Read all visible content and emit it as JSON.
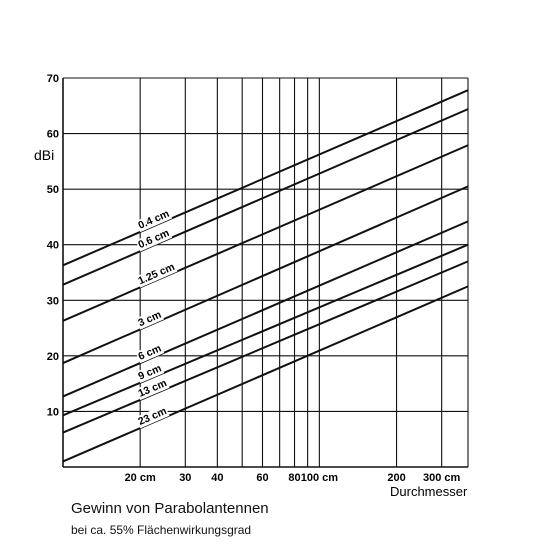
{
  "chart_data": {
    "type": "line",
    "title": "Gewinn von Parabolantennen",
    "subtitle": "bei ca. 55% Flächenwirkungsgrad",
    "ylabel": "dBi",
    "xlabel": "Durchmesser",
    "x_scale": "log",
    "xlim": [
      10,
      380
    ],
    "ylim": [
      0,
      70
    ],
    "y_ticks": [
      0,
      10,
      20,
      30,
      40,
      50,
      60,
      70
    ],
    "y_tick_labels": [
      "",
      "10",
      "20",
      "30",
      "40",
      "50",
      "60",
      "70"
    ],
    "x_ticks": [
      20,
      30,
      40,
      60,
      80,
      100,
      200,
      300
    ],
    "x_tick_labels": [
      "20 cm",
      "30",
      "40",
      "60",
      "80",
      "100 cm",
      "200",
      "300 cm"
    ],
    "x_gridlines": [
      20,
      30,
      40,
      50,
      60,
      70,
      80,
      90,
      100,
      200,
      300
    ],
    "grid": true,
    "series": [
      {
        "name": "0.4 cm",
        "points": [
          [
            10,
            36.3
          ],
          [
            380,
            67.8
          ]
        ]
      },
      {
        "name": "0.6 cm",
        "points": [
          [
            10,
            32.8
          ],
          [
            380,
            64.4
          ]
        ]
      },
      {
        "name": "1.25 cm",
        "points": [
          [
            10,
            26.3
          ],
          [
            380,
            57.9
          ]
        ]
      },
      {
        "name": "3 cm",
        "points": [
          [
            10,
            18.7
          ],
          [
            380,
            50.5
          ]
        ]
      },
      {
        "name": "6 cm",
        "points": [
          [
            10,
            12.7
          ],
          [
            380,
            44.2
          ]
        ]
      },
      {
        "name": "9 cm",
        "points": [
          [
            10,
            9.3
          ],
          [
            380,
            40.0
          ]
        ]
      },
      {
        "name": "13 cm",
        "points": [
          [
            10,
            6.2
          ],
          [
            380,
            37.0
          ]
        ]
      },
      {
        "name": "23 cm",
        "points": [
          [
            10,
            1.0
          ],
          [
            380,
            32.5
          ]
        ]
      }
    ]
  }
}
